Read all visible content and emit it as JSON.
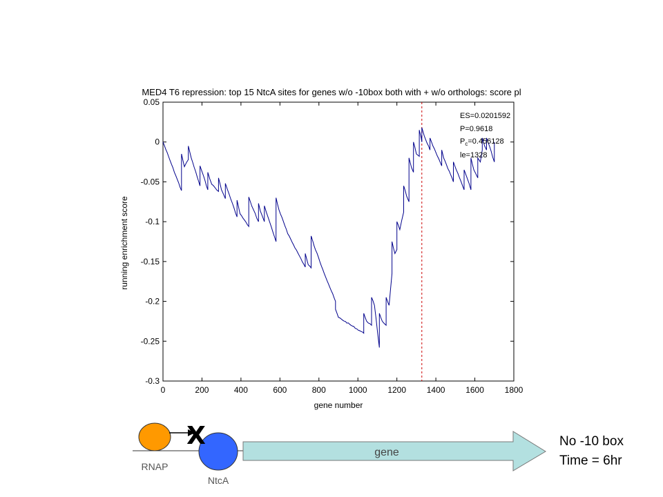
{
  "chart_data": {
    "type": "line",
    "title": "MED4 T6 repression: top 15 NtcA sites for genes w/o -10box both with + w/o orthologs: score pl",
    "xlabel": "gene number",
    "ylabel": "running enrichment score",
    "xlim": [
      0,
      1800
    ],
    "ylim": [
      -0.3,
      0.05
    ],
    "xticks": [
      "0",
      "200",
      "400",
      "600",
      "800",
      "1000",
      "1200",
      "1400",
      "1600",
      "1800"
    ],
    "yticks": [
      "0.05",
      "0",
      "-0.05",
      "-0.1",
      "-0.15",
      "-0.2",
      "-0.25",
      "-0.3"
    ],
    "grid": false,
    "series_color": "#00008b",
    "marker_line": {
      "x": 1328,
      "color": "#cc0000",
      "style": "dashed"
    },
    "x": [
      0,
      95,
      95,
      110,
      130,
      130,
      145,
      190,
      190,
      200,
      230,
      230,
      250,
      285,
      285,
      300,
      320,
      320,
      340,
      380,
      380,
      395,
      440,
      440,
      455,
      490,
      490,
      500,
      520,
      520,
      540,
      580,
      580,
      595,
      640,
      730,
      730,
      745,
      760,
      760,
      775,
      820,
      885,
      885,
      900,
      1030,
      1030,
      1045,
      1070,
      1070,
      1085,
      1110,
      1110,
      1125,
      1145,
      1145,
      1160,
      1175,
      1175,
      1190,
      1200,
      1200,
      1215,
      1235,
      1235,
      1250,
      1262,
      1262,
      1275,
      1285,
      1285,
      1300,
      1315,
      1315,
      1325,
      1328,
      1328,
      1340,
      1370,
      1370,
      1385,
      1430,
      1430,
      1440,
      1490,
      1490,
      1505,
      1545,
      1545,
      1560,
      1580,
      1580,
      1595,
      1615,
      1615,
      1628,
      1638,
      1638,
      1650,
      1660,
      1660,
      1675,
      1700,
      1700
    ],
    "values": [
      0.0,
      -0.061,
      -0.015,
      -0.031,
      -0.022,
      -0.005,
      -0.02,
      -0.055,
      -0.03,
      -0.037,
      -0.06,
      -0.038,
      -0.053,
      -0.062,
      -0.045,
      -0.06,
      -0.071,
      -0.052,
      -0.066,
      -0.094,
      -0.073,
      -0.09,
      -0.106,
      -0.069,
      -0.08,
      -0.1,
      -0.077,
      -0.087,
      -0.1,
      -0.08,
      -0.095,
      -0.125,
      -0.07,
      -0.085,
      -0.115,
      -0.157,
      -0.14,
      -0.154,
      -0.158,
      -0.118,
      -0.13,
      -0.16,
      -0.2,
      -0.21,
      -0.22,
      -0.24,
      -0.215,
      -0.225,
      -0.23,
      -0.195,
      -0.205,
      -0.258,
      -0.215,
      -0.225,
      -0.23,
      -0.195,
      -0.205,
      -0.165,
      -0.125,
      -0.14,
      -0.135,
      -0.1,
      -0.11,
      -0.088,
      -0.055,
      -0.068,
      -0.075,
      -0.02,
      -0.032,
      -0.038,
      0.0,
      -0.015,
      -0.018,
      0.015,
      0.005,
      0.0,
      0.018,
      0.008,
      -0.01,
      0.005,
      -0.005,
      -0.03,
      -0.01,
      -0.02,
      -0.05,
      -0.025,
      -0.035,
      -0.06,
      -0.035,
      -0.045,
      -0.06,
      -0.02,
      -0.035,
      -0.045,
      -0.02,
      -0.025,
      -0.01,
      0.005,
      -0.005,
      -0.01,
      0.005,
      -0.005,
      -0.025,
      0.0
    ],
    "annotation": [
      "ES=0.0201592",
      "P=0.9618",
      "P_c=0.456128",
      "le=1328"
    ]
  },
  "annotation_lines": {
    "es": "ES=0.0201592",
    "p": "P=0.9618",
    "pc_prefix": "P",
    "pc_sub": "c",
    "pc_value": "=0.456128",
    "le": "le=1328"
  },
  "diagram": {
    "rnap_label": "RNAP",
    "ntca_label": "NtcA",
    "gene_label": "gene",
    "block_mark": "X",
    "rnap_color": "#ff9900",
    "ntca_color": "#3366ff",
    "gene_arrow_color": "#b3e0e0"
  },
  "notes": {
    "line1": "No -10 box",
    "line2": "Time = 6hr"
  }
}
